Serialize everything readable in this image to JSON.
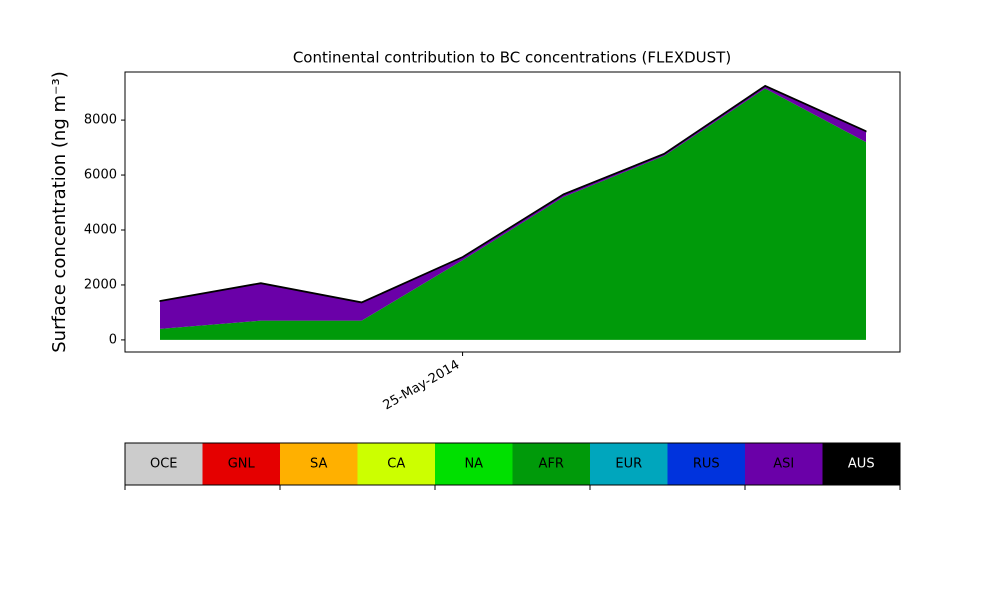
{
  "chart_data": {
    "type": "stackedarea",
    "title": "Continental contribution to BC concentrations (FLEXDUST)",
    "y_label": "Surface concentration (ng m⁻³)",
    "categories": [
      null,
      null,
      null,
      "25-May-2014",
      null,
      null,
      null,
      null
    ],
    "ylim": [
      -440,
      9750
    ],
    "yticks": [
      0,
      2000,
      4000,
      6000,
      8000
    ],
    "series": [
      {
        "name": "OCE",
        "color": "#cccccc",
        "values": [
          0,
          0,
          0,
          0,
          0,
          0,
          0,
          0
        ]
      },
      {
        "name": "GNL",
        "color": "#e50000",
        "values": [
          0,
          0,
          0,
          0,
          0,
          0,
          0,
          0
        ]
      },
      {
        "name": "SA",
        "color": "#ffb000",
        "values": [
          0,
          0,
          0,
          0,
          0,
          0,
          0,
          0
        ]
      },
      {
        "name": "CA",
        "color": "#ccff00",
        "values": [
          0,
          0,
          0,
          0,
          0,
          0,
          0,
          0
        ]
      },
      {
        "name": "NA",
        "color": "#00e000",
        "values": [
          0,
          0,
          0,
          0,
          0,
          0,
          0,
          0
        ]
      },
      {
        "name": "AFR",
        "color": "#009a0a",
        "values": [
          400,
          700,
          700,
          2900,
          5200,
          6700,
          9150,
          7200
        ]
      },
      {
        "name": "EUR",
        "color": "#00a6bd",
        "values": [
          0,
          0,
          0,
          0,
          0,
          0,
          0,
          0
        ]
      },
      {
        "name": "RUS",
        "color": "#0033dd",
        "values": [
          0,
          0,
          0,
          0,
          0,
          0,
          0,
          0
        ]
      },
      {
        "name": "ASI",
        "color": "#6a00a8",
        "values": [
          1000,
          1350,
          650,
          100,
          80,
          60,
          80,
          380
        ]
      },
      {
        "name": "AUS",
        "color": "#000000",
        "values": [
          30,
          30,
          30,
          30,
          30,
          30,
          30,
          30
        ]
      }
    ]
  }
}
